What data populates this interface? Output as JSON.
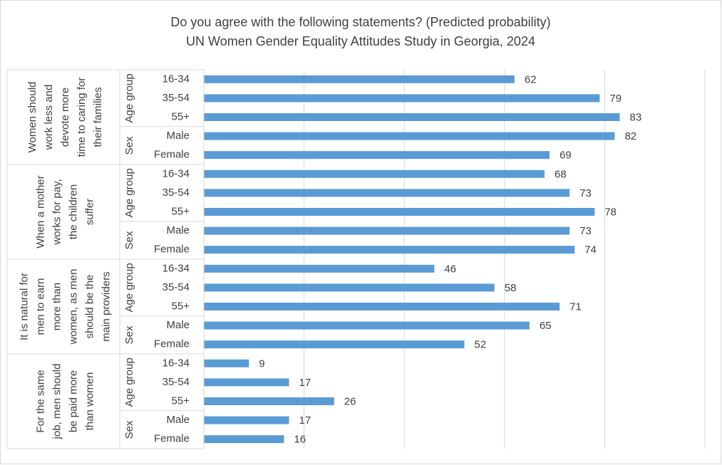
{
  "chart_data": {
    "type": "bar",
    "orientation": "horizontal",
    "title": "Do you agree with the following statements? (Predicted probability)",
    "subtitle": "UN Women Gender Equality Attitudes Study in Georgia, 2024",
    "color": "#5b9bd5",
    "xlim": [
      0,
      100
    ],
    "xticks": [
      0,
      20,
      40,
      60,
      80,
      100
    ],
    "grid": true,
    "groups": [
      {
        "label": [
          "Women should",
          "work less and",
          "devote more",
          "time to caring for",
          "their families"
        ],
        "subgroups": [
          {
            "label": "Age group",
            "categories": [
              "16-34",
              "35-54",
              "55+"
            ],
            "values": [
              62,
              79,
              83
            ]
          },
          {
            "label": "Sex",
            "categories": [
              "Male",
              "Female"
            ],
            "values": [
              82,
              69
            ]
          }
        ]
      },
      {
        "label": [
          "When a mother",
          "works for pay,",
          "the children",
          "suffer"
        ],
        "subgroups": [
          {
            "label": "Age group",
            "categories": [
              "16-34",
              "35-54",
              "55+"
            ],
            "values": [
              68,
              73,
              78
            ]
          },
          {
            "label": "Sex",
            "categories": [
              "Male",
              "Female"
            ],
            "values": [
              73,
              74
            ]
          }
        ]
      },
      {
        "label": [
          "It is natural for",
          "men to earn",
          "more than",
          "women, as men",
          "should be the",
          "main providers"
        ],
        "subgroups": [
          {
            "label": "Age group",
            "categories": [
              "16-34",
              "35-54",
              "55+"
            ],
            "values": [
              46,
              58,
              71
            ]
          },
          {
            "label": "Sex",
            "categories": [
              "Male",
              "Female"
            ],
            "values": [
              65,
              52
            ]
          }
        ]
      },
      {
        "label": [
          "For the same",
          "job, men should",
          "be paid more",
          "than women"
        ],
        "subgroups": [
          {
            "label": "Age group",
            "categories": [
              "16-34",
              "35-54",
              "55+"
            ],
            "values": [
              9,
              17,
              26
            ]
          },
          {
            "label": "Sex",
            "categories": [
              "Male",
              "Female"
            ],
            "values": [
              17,
              16
            ]
          }
        ]
      }
    ]
  }
}
